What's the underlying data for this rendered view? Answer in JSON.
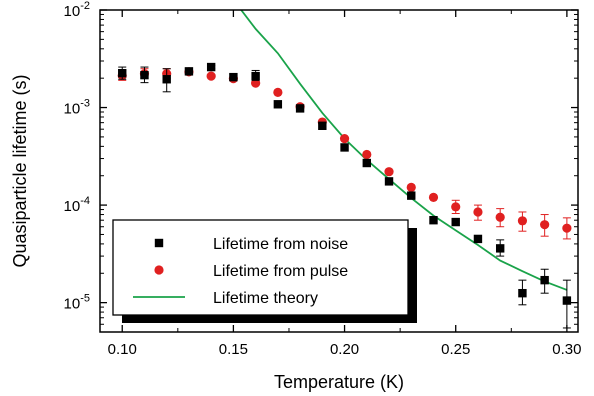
{
  "chart_data": {
    "type": "scatter",
    "xlabel": "Temperature (K)",
    "ylabel": "Quasiparticle lifetime (s)",
    "xlim": [
      0.09,
      0.305
    ],
    "ylim": [
      5e-06,
      0.01
    ],
    "yscale": "log",
    "x_ticks": [
      {
        "value": 0.1,
        "label": "0.10"
      },
      {
        "value": 0.15,
        "label": "0.15"
      },
      {
        "value": 0.2,
        "label": "0.20"
      },
      {
        "value": 0.25,
        "label": "0.25"
      },
      {
        "value": 0.3,
        "label": "0.30"
      }
    ],
    "y_ticks": [
      {
        "value": 0.01,
        "base": "10",
        "exp": "-2"
      },
      {
        "value": 0.001,
        "base": "10",
        "exp": "-3"
      },
      {
        "value": 0.0001,
        "base": "10",
        "exp": "-4"
      },
      {
        "value": 1e-05,
        "base": "10",
        "exp": "-5"
      }
    ],
    "grid": false,
    "legend_position": "bottom-left",
    "series": [
      {
        "name": "Lifetime from noise",
        "marker": "square",
        "color": "#000000",
        "points": [
          {
            "x": 0.1,
            "y": 0.00225,
            "err_lo": 0.00195,
            "err_hi": 0.0026
          },
          {
            "x": 0.11,
            "y": 0.00215,
            "err_lo": 0.0018,
            "err_hi": 0.0026
          },
          {
            "x": 0.12,
            "y": 0.00195,
            "err_lo": 0.00145,
            "err_hi": 0.0025
          },
          {
            "x": 0.13,
            "y": 0.00235,
            "err_lo": 0.0022,
            "err_hi": 0.0025
          },
          {
            "x": 0.14,
            "y": 0.0026,
            "err_lo": 0.0025,
            "err_hi": 0.0027
          },
          {
            "x": 0.15,
            "y": 0.00205,
            "err_lo": 0.0019,
            "err_hi": 0.0022
          },
          {
            "x": 0.16,
            "y": 0.0021,
            "err_lo": 0.0019,
            "err_hi": 0.0024
          },
          {
            "x": 0.17,
            "y": 0.00108
          },
          {
            "x": 0.18,
            "y": 0.00098
          },
          {
            "x": 0.19,
            "y": 0.00065
          },
          {
            "x": 0.2,
            "y": 0.00039
          },
          {
            "x": 0.21,
            "y": 0.00027
          },
          {
            "x": 0.22,
            "y": 0.000175
          },
          {
            "x": 0.23,
            "y": 0.000125
          },
          {
            "x": 0.24,
            "y": 7e-05
          },
          {
            "x": 0.25,
            "y": 6.7e-05
          },
          {
            "x": 0.26,
            "y": 4.5e-05
          },
          {
            "x": 0.27,
            "y": 3.6e-05,
            "err_lo": 3e-05,
            "err_hi": 4.4e-05
          },
          {
            "x": 0.28,
            "y": 1.25e-05,
            "err_lo": 9.5e-06,
            "err_hi": 1.7e-05
          },
          {
            "x": 0.29,
            "y": 1.7e-05,
            "err_lo": 1.25e-05,
            "err_hi": 2.2e-05
          },
          {
            "x": 0.3,
            "y": 1.05e-05,
            "err_lo": 5.5e-06,
            "err_hi": 1.7e-05
          }
        ]
      },
      {
        "name": "Lifetime from pulse",
        "marker": "circle",
        "color": "#e02020",
        "points": [
          {
            "x": 0.1,
            "y": 0.00213,
            "err_lo": 0.0019,
            "err_hi": 0.0024
          },
          {
            "x": 0.11,
            "y": 0.00222,
            "err_lo": 0.002,
            "err_hi": 0.0025
          },
          {
            "x": 0.12,
            "y": 0.00222,
            "err_lo": 0.002,
            "err_hi": 0.0025
          },
          {
            "x": 0.13,
            "y": 0.00232
          },
          {
            "x": 0.14,
            "y": 0.0021
          },
          {
            "x": 0.15,
            "y": 0.00198
          },
          {
            "x": 0.16,
            "y": 0.00178
          },
          {
            "x": 0.17,
            "y": 0.00143
          },
          {
            "x": 0.18,
            "y": 0.00102
          },
          {
            "x": 0.19,
            "y": 0.00071
          },
          {
            "x": 0.2,
            "y": 0.00048
          },
          {
            "x": 0.21,
            "y": 0.00033
          },
          {
            "x": 0.22,
            "y": 0.00022
          },
          {
            "x": 0.23,
            "y": 0.000152
          },
          {
            "x": 0.24,
            "y": 0.00012
          },
          {
            "x": 0.25,
            "y": 9.6e-05,
            "err_lo": 8.2e-05,
            "err_hi": 0.000112
          },
          {
            "x": 0.26,
            "y": 8.5e-05,
            "err_lo": 7e-05,
            "err_hi": 0.0001
          },
          {
            "x": 0.27,
            "y": 7.5e-05,
            "err_lo": 6e-05,
            "err_hi": 9.2e-05
          },
          {
            "x": 0.28,
            "y": 6.9e-05,
            "err_lo": 5.4e-05,
            "err_hi": 8.5e-05
          },
          {
            "x": 0.29,
            "y": 6.3e-05,
            "err_lo": 4.8e-05,
            "err_hi": 8e-05
          },
          {
            "x": 0.3,
            "y": 5.8e-05,
            "err_lo": 4.5e-05,
            "err_hi": 7.4e-05
          }
        ]
      },
      {
        "name": "Lifetime theory",
        "marker": "line",
        "color": "#1aa34a",
        "points": [
          {
            "x": 0.1535,
            "y": 0.01
          },
          {
            "x": 0.16,
            "y": 0.0064
          },
          {
            "x": 0.17,
            "y": 0.0036
          },
          {
            "x": 0.18,
            "y": 0.00175
          },
          {
            "x": 0.19,
            "y": 0.00088
          },
          {
            "x": 0.2,
            "y": 0.00048
          },
          {
            "x": 0.21,
            "y": 0.00029
          },
          {
            "x": 0.22,
            "y": 0.000185
          },
          {
            "x": 0.23,
            "y": 0.000118
          },
          {
            "x": 0.24,
            "y": 7.8e-05
          },
          {
            "x": 0.25,
            "y": 5.5e-05
          },
          {
            "x": 0.26,
            "y": 3.9e-05
          },
          {
            "x": 0.27,
            "y": 2.7e-05
          },
          {
            "x": 0.28,
            "y": 2.1e-05
          },
          {
            "x": 0.29,
            "y": 1.65e-05
          },
          {
            "x": 0.3,
            "y": 1.35e-05
          }
        ]
      }
    ]
  }
}
